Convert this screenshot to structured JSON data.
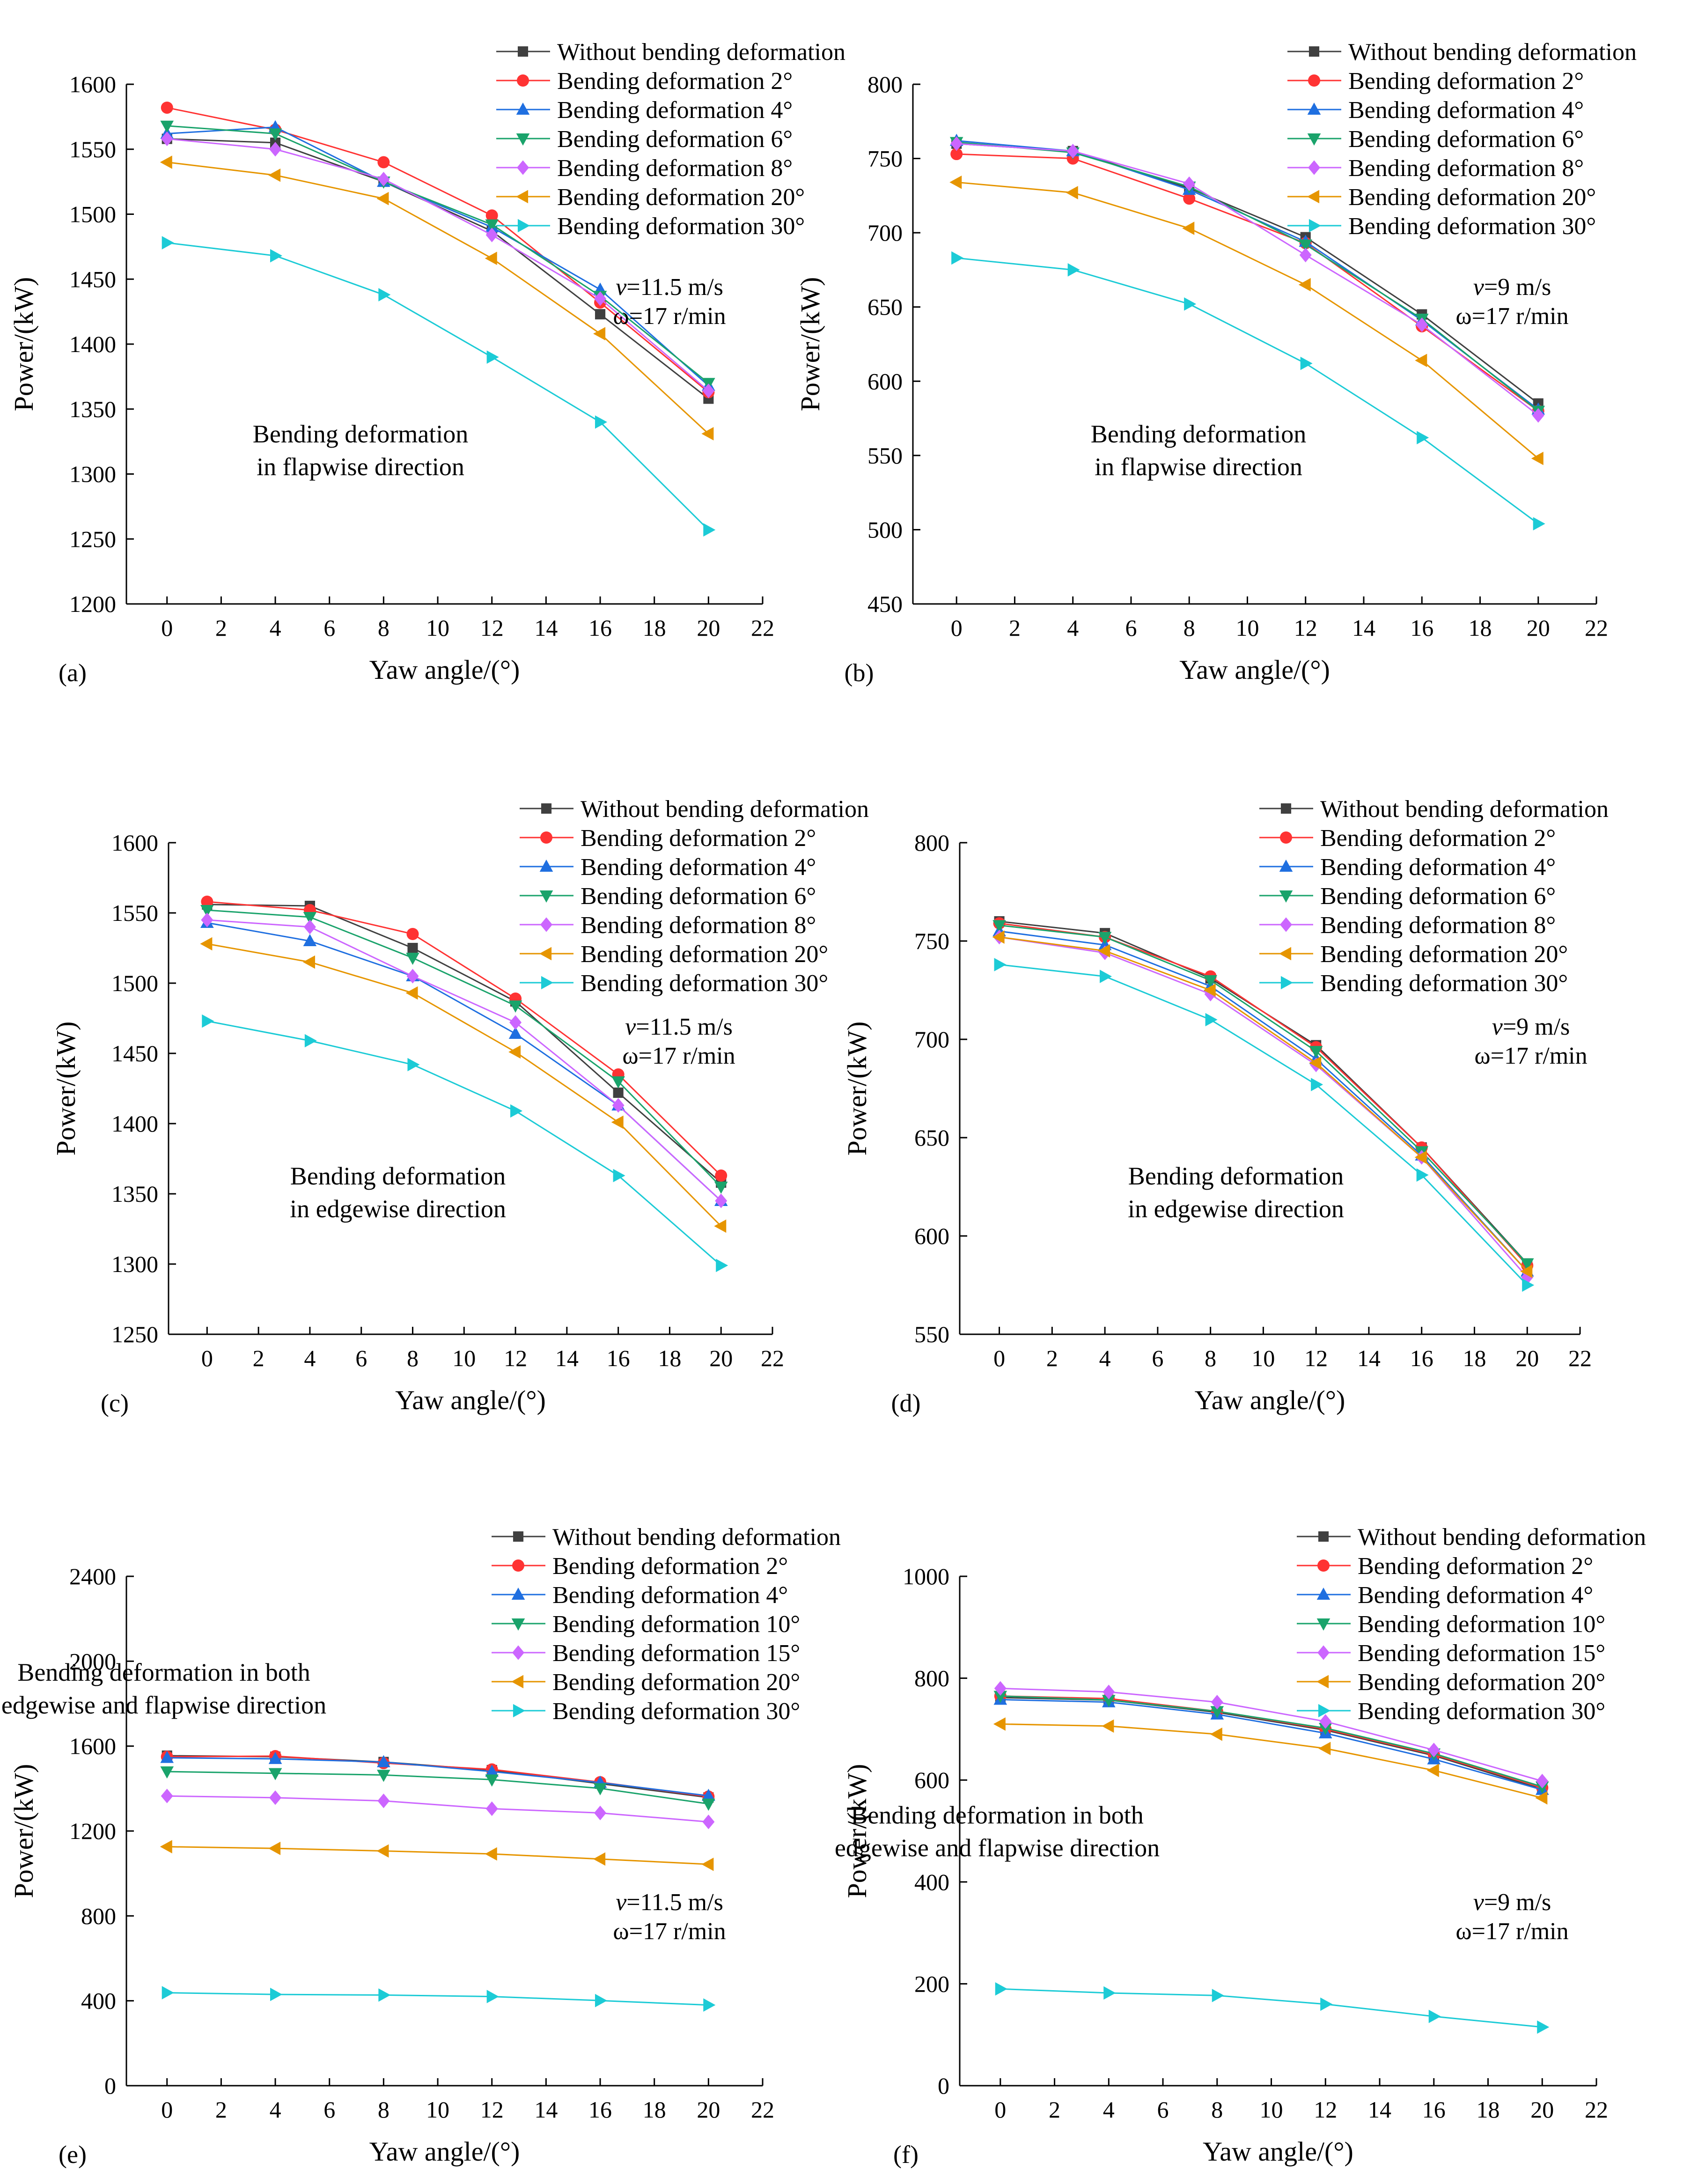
{
  "figure": {
    "x_values": [
      0,
      4,
      8,
      12,
      16,
      20
    ],
    "colors": {
      "without": "#404040",
      "d2": "#ff3333",
      "d4": "#1f6fe0",
      "d6": "#1aa36b",
      "d8": "#cc66ff",
      "d20": "#e69500",
      "d30": "#1ccbd6"
    }
  },
  "chart_data": [
    {
      "panel": "(a)",
      "type": "line",
      "xlabel": "Yaw angle/(°)",
      "ylabel": "Power/(kW)",
      "xlim": [
        -1.5,
        22
      ],
      "ylim": [
        1200,
        1600
      ],
      "xticks": [
        0,
        2,
        4,
        6,
        8,
        10,
        12,
        14,
        16,
        18,
        20,
        22
      ],
      "yticks": [
        1200,
        1250,
        1300,
        1350,
        1400,
        1450,
        1500,
        1550,
        1600
      ],
      "annotation": [
        "Bending deformation",
        "in flapwise direction"
      ],
      "condition_v": "=11.5 m/s",
      "condition_w": "ω=17 r/min",
      "x": [
        0,
        4,
        8,
        12,
        16,
        20
      ],
      "series": [
        {
          "name": "Without bending deformation",
          "values": [
            1558,
            1555,
            1525,
            1487,
            1423,
            1358
          ]
        },
        {
          "name": "Bending deformation 2°",
          "values": [
            1582,
            1565,
            1540,
            1499,
            1432,
            1363
          ]
        },
        {
          "name": "Bending deformation 4°",
          "values": [
            1562,
            1567,
            1525,
            1490,
            1442,
            1368
          ]
        },
        {
          "name": "Bending deformation 6°",
          "values": [
            1568,
            1562,
            1525,
            1492,
            1437,
            1370
          ]
        },
        {
          "name": "Bending deformation 8°",
          "values": [
            1558,
            1550,
            1527,
            1484,
            1435,
            1364
          ]
        },
        {
          "name": "Bending deformation 20°",
          "values": [
            1540,
            1530,
            1512,
            1466,
            1408,
            1331
          ]
        },
        {
          "name": "Bending deformation 30°",
          "values": [
            1478,
            1468,
            1438,
            1390,
            1340,
            1257
          ]
        }
      ]
    },
    {
      "panel": "(b)",
      "type": "line",
      "xlabel": "Yaw angle/(°)",
      "ylabel": "Power/(kW)",
      "xlim": [
        -1.5,
        22
      ],
      "ylim": [
        450,
        800
      ],
      "xticks": [
        0,
        2,
        4,
        6,
        8,
        10,
        12,
        14,
        16,
        18,
        20,
        22
      ],
      "yticks": [
        450,
        500,
        550,
        600,
        650,
        700,
        750,
        800
      ],
      "annotation": [
        "Bending deformation",
        "in flapwise direction"
      ],
      "condition_v": "=9 m/s",
      "condition_w": "ω=17 r/min",
      "x": [
        0,
        4,
        8,
        12,
        16,
        20
      ],
      "series": [
        {
          "name": "Without bending deformation",
          "values": [
            760,
            755,
            730,
            697,
            645,
            585
          ]
        },
        {
          "name": "Bending deformation 2°",
          "values": [
            753,
            750,
            723,
            693,
            637,
            580
          ]
        },
        {
          "name": "Bending deformation 4°",
          "values": [
            762,
            755,
            729,
            694,
            641,
            581
          ]
        },
        {
          "name": "Bending deformation 6°",
          "values": [
            761,
            754,
            731,
            692,
            642,
            580
          ]
        },
        {
          "name": "Bending deformation 8°",
          "values": [
            760,
            755,
            733,
            685,
            638,
            577
          ]
        },
        {
          "name": "Bending deformation 20°",
          "values": [
            734,
            727,
            703,
            665,
            614,
            548
          ]
        },
        {
          "name": "Bending deformation 30°",
          "values": [
            683,
            675,
            652,
            612,
            562,
            504
          ]
        }
      ]
    },
    {
      "panel": "(c)",
      "type": "line",
      "xlabel": "Yaw angle/(°)",
      "ylabel": "Power/(kW)",
      "xlim": [
        -1.5,
        22
      ],
      "ylim": [
        1250,
        1600
      ],
      "xticks": [
        0,
        2,
        4,
        6,
        8,
        10,
        12,
        14,
        16,
        18,
        20,
        22
      ],
      "yticks": [
        1250,
        1300,
        1350,
        1400,
        1450,
        1500,
        1550,
        1600
      ],
      "annotation": [
        "Bending deformation",
        "in edgewise direction"
      ],
      "condition_v": "=11.5 m/s",
      "condition_w": "ω=17 r/min",
      "x": [
        0,
        4,
        8,
        12,
        16,
        20
      ],
      "series": [
        {
          "name": "Without bending deformation",
          "values": [
            1556,
            1555,
            1525,
            1487,
            1422,
            1358
          ]
        },
        {
          "name": "Bending deformation 2°",
          "values": [
            1558,
            1552,
            1535,
            1489,
            1435,
            1363
          ]
        },
        {
          "name": "Bending deformation 4°",
          "values": [
            1543,
            1530,
            1505,
            1464,
            1413,
            1345
          ]
        },
        {
          "name": "Bending deformation 6°",
          "values": [
            1552,
            1547,
            1518,
            1484,
            1430,
            1355
          ]
        },
        {
          "name": "Bending deformation 8°",
          "values": [
            1545,
            1540,
            1505,
            1472,
            1413,
            1345
          ]
        },
        {
          "name": "Bending deformation 20°",
          "values": [
            1528,
            1515,
            1493,
            1451,
            1401,
            1327
          ]
        },
        {
          "name": "Bending deformation 30°",
          "values": [
            1473,
            1459,
            1442,
            1409,
            1363,
            1299
          ]
        }
      ]
    },
    {
      "panel": "(d)",
      "type": "line",
      "xlabel": "Yaw angle/(°)",
      "ylabel": "Power/(kW)",
      "xlim": [
        -1.5,
        22
      ],
      "ylim": [
        550,
        800
      ],
      "xticks": [
        0,
        2,
        4,
        6,
        8,
        10,
        12,
        14,
        16,
        18,
        20,
        22
      ],
      "yticks": [
        550,
        600,
        650,
        700,
        750,
        800
      ],
      "annotation": [
        "Bending deformation",
        "in edgewise direction"
      ],
      "condition_v": "=9 m/s",
      "condition_w": "ω=17 r/min",
      "x": [
        0,
        4,
        8,
        12,
        16,
        20
      ],
      "series": [
        {
          "name": "Without bending deformation",
          "values": [
            760,
            754,
            731,
            697,
            645,
            586
          ]
        },
        {
          "name": "Bending deformation 2°",
          "values": [
            759,
            752,
            732,
            696,
            645,
            585
          ]
        },
        {
          "name": "Bending deformation 4°",
          "values": [
            755,
            748,
            727,
            690,
            641,
            582
          ]
        },
        {
          "name": "Bending deformation 6°",
          "values": [
            758,
            752,
            730,
            694,
            643,
            586
          ]
        },
        {
          "name": "Bending deformation 8°",
          "values": [
            752,
            744,
            723,
            687,
            640,
            579
          ]
        },
        {
          "name": "Bending deformation 20°",
          "values": [
            752,
            745,
            725,
            688,
            640,
            582
          ]
        },
        {
          "name": "Bending deformation 30°",
          "values": [
            738,
            732,
            710,
            677,
            631,
            575
          ]
        }
      ]
    },
    {
      "panel": "(e)",
      "type": "line",
      "xlabel": "Yaw angle/(°)",
      "ylabel": "Power/(kW)",
      "xlim": [
        -1.5,
        22
      ],
      "ylim": [
        0,
        2400
      ],
      "xticks": [
        0,
        2,
        4,
        6,
        8,
        10,
        12,
        14,
        16,
        18,
        20,
        22
      ],
      "yticks": [
        0,
        400,
        800,
        1200,
        1600,
        2000,
        2400
      ],
      "annotation": [
        "Bending deformation in both",
        "edgewise and flapwise direction"
      ],
      "condition_v": "=11.5 m/s",
      "condition_w": "ω=17 r/min",
      "x": [
        0,
        4,
        8,
        12,
        16,
        20
      ],
      "series": [
        {
          "name": "Without bending deformation",
          "values": [
            1555,
            1550,
            1525,
            1487,
            1423,
            1358
          ]
        },
        {
          "name": "Bending deformation 2°",
          "values": [
            1550,
            1553,
            1520,
            1490,
            1430,
            1362
          ]
        },
        {
          "name": "Bending deformation 4°",
          "values": [
            1545,
            1540,
            1525,
            1480,
            1428,
            1366
          ]
        },
        {
          "name": "Bending deformation 10°",
          "values": [
            1480,
            1472,
            1464,
            1442,
            1401,
            1328
          ]
        },
        {
          "name": "Bending deformation 15°",
          "values": [
            1365,
            1357,
            1342,
            1305,
            1285,
            1243
          ]
        },
        {
          "name": "Bending deformation 20°",
          "values": [
            1126,
            1118,
            1106,
            1092,
            1068,
            1043
          ]
        },
        {
          "name": "Bending deformation 30°",
          "values": [
            438,
            430,
            427,
            420,
            401,
            380
          ]
        }
      ]
    },
    {
      "panel": "(f)",
      "type": "line",
      "xlabel": "Yaw angle/(°)",
      "ylabel": "Power/(kW)",
      "xlim": [
        -1.5,
        22
      ],
      "ylim": [
        0,
        1000
      ],
      "xticks": [
        0,
        2,
        4,
        6,
        8,
        10,
        12,
        14,
        16,
        18,
        20,
        22
      ],
      "yticks": [
        0,
        200,
        400,
        600,
        800,
        1000
      ],
      "annotation": [
        "Bending deformation in both",
        "edgewise and flapwise direction"
      ],
      "condition_v": "=9 m/s",
      "condition_w": "ω=17 r/min",
      "x": [
        0,
        4,
        8,
        12,
        16,
        20
      ],
      "series": [
        {
          "name": "Without bending deformation",
          "values": [
            762,
            757,
            733,
            698,
            648,
            582
          ]
        },
        {
          "name": "Bending deformation 2°",
          "values": [
            765,
            760,
            735,
            700,
            650,
            585
          ]
        },
        {
          "name": "Bending deformation 4°",
          "values": [
            758,
            753,
            729,
            692,
            641,
            581
          ]
        },
        {
          "name": "Bending deformation 10°",
          "values": [
            765,
            757,
            735,
            702,
            652,
            587
          ]
        },
        {
          "name": "Bending deformation 15°",
          "values": [
            780,
            773,
            753,
            715,
            659,
            598
          ]
        },
        {
          "name": "Bending deformation 20°",
          "values": [
            710,
            706,
            690,
            662,
            619,
            565
          ]
        },
        {
          "name": "Bending deformation 30°",
          "values": [
            190,
            182,
            177,
            160,
            136,
            115
          ]
        }
      ]
    }
  ]
}
